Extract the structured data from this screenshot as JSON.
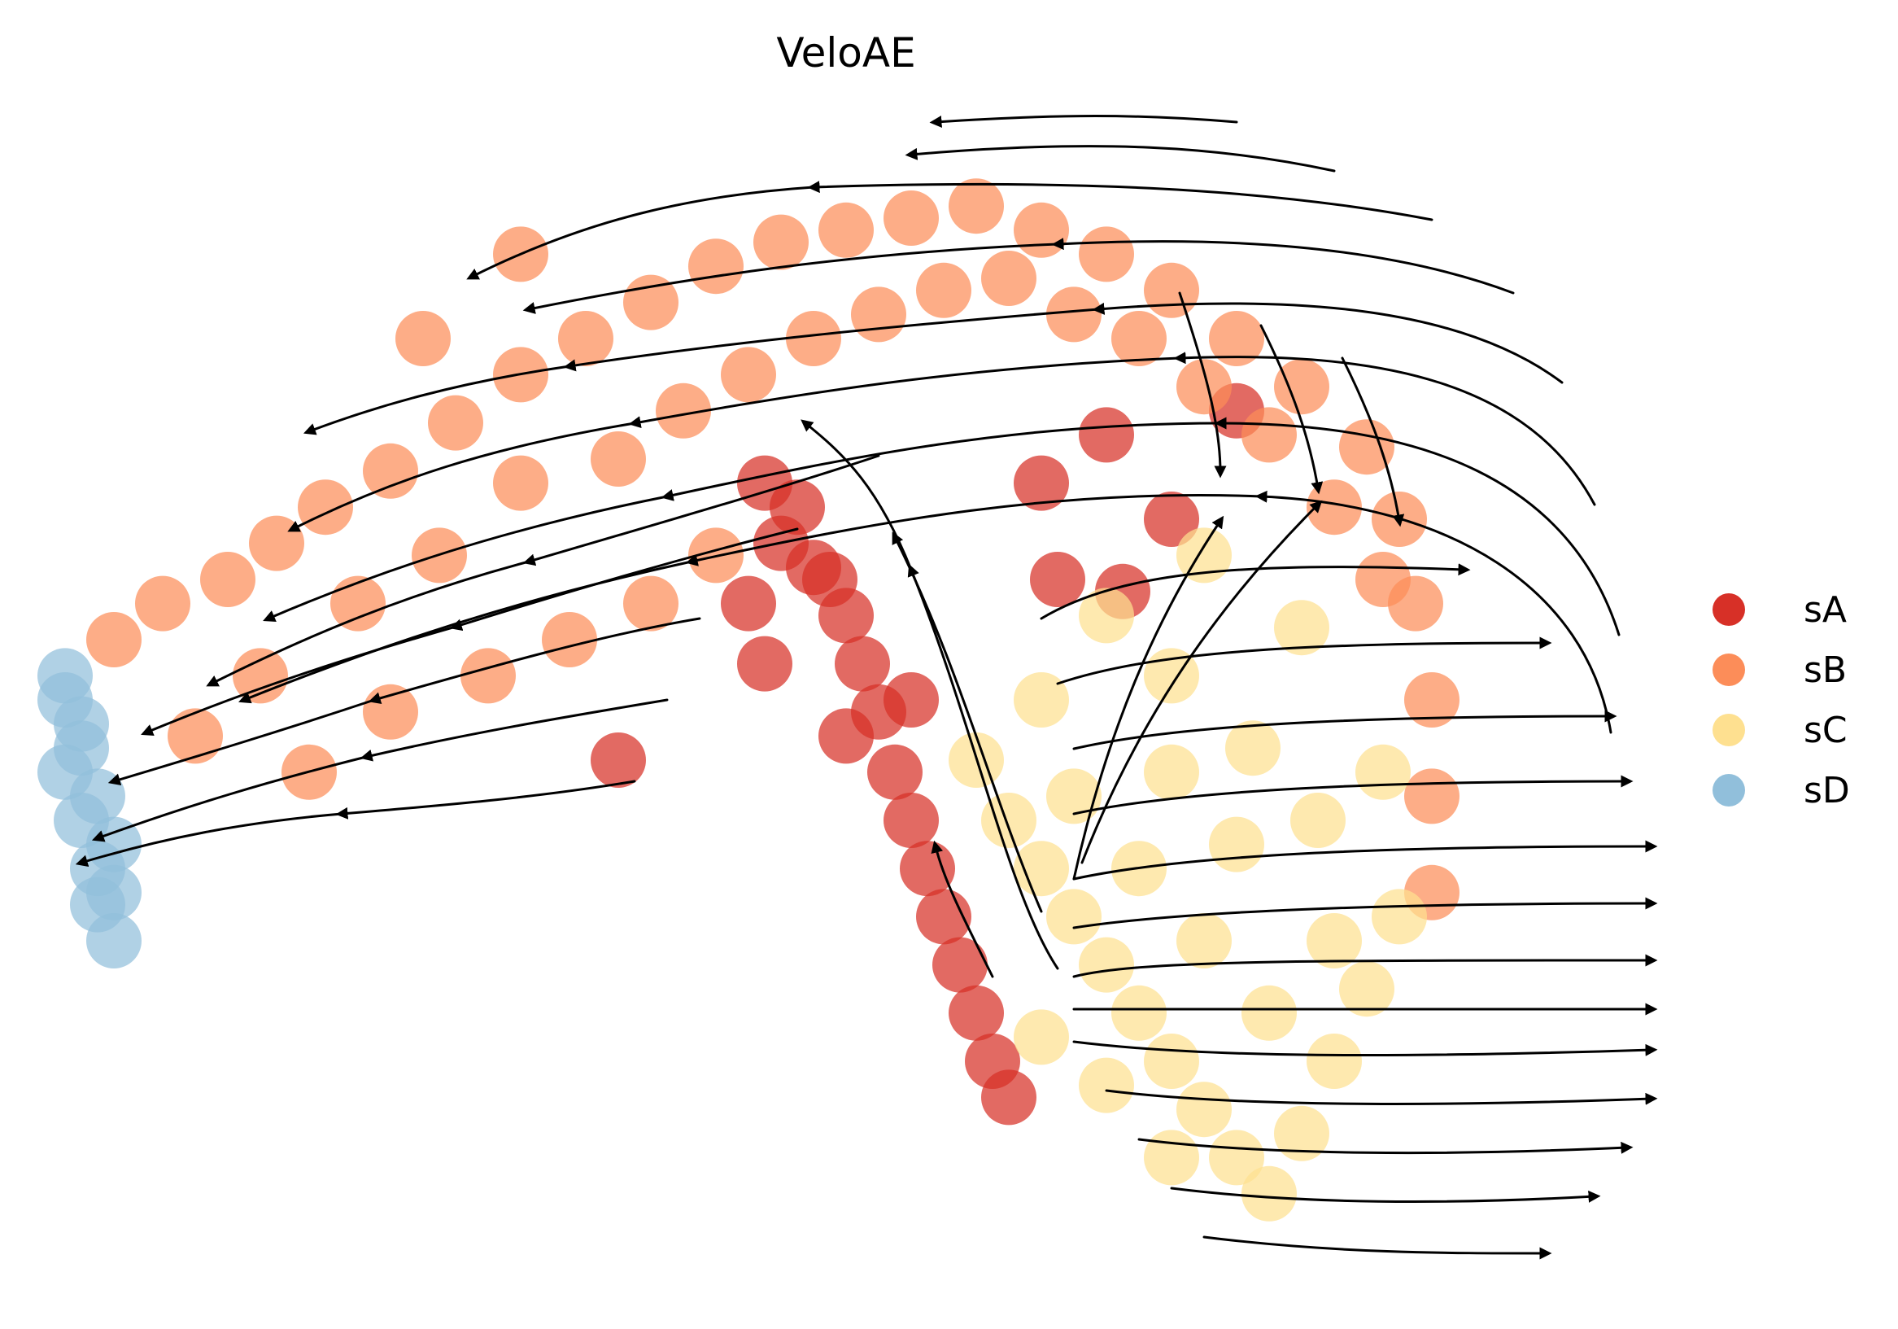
{
  "chart_data": {
    "type": "scatter",
    "title": "VeloAE",
    "xlabel": "",
    "ylabel": "",
    "grid": false,
    "axes_visible": false,
    "overlay": "velocity streamlines with arrowheads",
    "legend": {
      "placement": "right",
      "entries": [
        {
          "name": "sA",
          "color": "#d73027"
        },
        {
          "name": "sB",
          "color": "#fc8d59"
        },
        {
          "name": "sC",
          "color": "#fee090"
        },
        {
          "name": "sD",
          "color": "#91bfdb"
        }
      ]
    },
    "xlim": [
      0,
      100
    ],
    "ylim": [
      0,
      100
    ],
    "series": [
      {
        "name": "sA",
        "color": "#d73027",
        "values": [
          [
            46,
            63
          ],
          [
            48,
            61
          ],
          [
            50,
            57
          ],
          [
            51,
            53
          ],
          [
            52,
            49
          ],
          [
            53,
            44
          ],
          [
            54,
            40
          ],
          [
            55,
            36
          ],
          [
            56,
            32
          ],
          [
            57,
            28
          ],
          [
            58,
            24
          ],
          [
            59,
            20
          ],
          [
            60,
            17
          ],
          [
            47,
            66
          ],
          [
            45,
            68
          ],
          [
            49,
            60
          ],
          [
            62,
            68
          ],
          [
            66,
            72
          ],
          [
            70,
            65
          ],
          [
            74,
            74
          ],
          [
            63,
            60
          ],
          [
            67,
            59
          ],
          [
            44,
            58
          ],
          [
            45,
            53
          ],
          [
            50,
            47
          ],
          [
            54,
            50
          ],
          [
            36,
            45
          ]
        ]
      },
      {
        "name": "sB",
        "color": "#fc8d59",
        "values": [
          [
            5,
            55
          ],
          [
            8,
            58
          ],
          [
            12,
            60
          ],
          [
            15,
            63
          ],
          [
            18,
            66
          ],
          [
            22,
            69
          ],
          [
            26,
            73
          ],
          [
            30,
            77
          ],
          [
            34,
            80
          ],
          [
            38,
            83
          ],
          [
            42,
            86
          ],
          [
            46,
            88
          ],
          [
            50,
            89
          ],
          [
            54,
            90
          ],
          [
            58,
            91
          ],
          [
            62,
            89
          ],
          [
            66,
            87
          ],
          [
            70,
            84
          ],
          [
            74,
            80
          ],
          [
            78,
            76
          ],
          [
            82,
            71
          ],
          [
            84,
            65
          ],
          [
            85,
            58
          ],
          [
            86,
            50
          ],
          [
            86,
            42
          ],
          [
            86,
            34
          ],
          [
            10,
            47
          ],
          [
            14,
            52
          ],
          [
            20,
            58
          ],
          [
            25,
            62
          ],
          [
            30,
            68
          ],
          [
            36,
            70
          ],
          [
            40,
            74
          ],
          [
            44,
            77
          ],
          [
            48,
            80
          ],
          [
            52,
            82
          ],
          [
            56,
            84
          ],
          [
            60,
            85
          ],
          [
            64,
            82
          ],
          [
            68,
            80
          ],
          [
            72,
            76
          ],
          [
            76,
            72
          ],
          [
            80,
            66
          ],
          [
            83,
            60
          ],
          [
            17,
            44
          ],
          [
            22,
            49
          ],
          [
            28,
            52
          ],
          [
            33,
            55
          ],
          [
            38,
            58
          ],
          [
            42,
            62
          ],
          [
            30,
            87
          ],
          [
            24,
            80
          ]
        ]
      },
      {
        "name": "sC",
        "color": "#fee090",
        "values": [
          [
            58,
            45
          ],
          [
            60,
            40
          ],
          [
            62,
            36
          ],
          [
            64,
            32
          ],
          [
            66,
            28
          ],
          [
            68,
            24
          ],
          [
            70,
            20
          ],
          [
            72,
            16
          ],
          [
            74,
            12
          ],
          [
            76,
            9
          ],
          [
            78,
            14
          ],
          [
            80,
            20
          ],
          [
            82,
            26
          ],
          [
            84,
            32
          ],
          [
            79,
            40
          ],
          [
            75,
            46
          ],
          [
            70,
            52
          ],
          [
            66,
            57
          ],
          [
            62,
            50
          ],
          [
            68,
            36
          ],
          [
            72,
            30
          ],
          [
            76,
            24
          ],
          [
            80,
            30
          ],
          [
            74,
            38
          ],
          [
            70,
            44
          ],
          [
            64,
            42
          ],
          [
            66,
            18
          ],
          [
            70,
            12
          ],
          [
            83,
            44
          ],
          [
            78,
            56
          ],
          [
            72,
            62
          ],
          [
            62,
            22
          ]
        ]
      },
      {
        "name": "sD",
        "color": "#91bfdb",
        "values": [
          [
            2,
            52
          ],
          [
            3,
            48
          ],
          [
            2,
            44
          ],
          [
            3,
            40
          ],
          [
            4,
            36
          ],
          [
            4,
            33
          ],
          [
            5,
            30
          ],
          [
            3,
            46
          ],
          [
            4,
            42
          ],
          [
            5,
            38
          ],
          [
            2,
            50
          ],
          [
            5,
            34
          ]
        ]
      }
    ]
  }
}
